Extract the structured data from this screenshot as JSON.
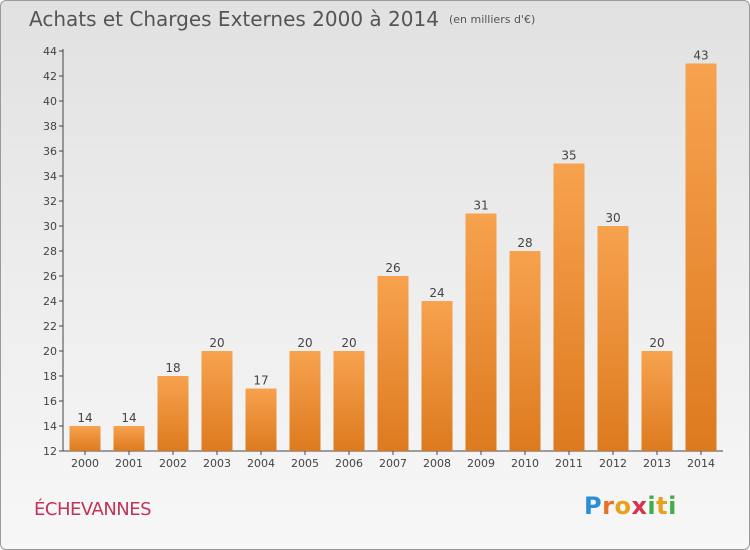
{
  "header": {
    "title": "Achats et Charges Externes 2000 à 2014",
    "unit": "(en milliers d'€)"
  },
  "commune": "ÉCHEVANNES",
  "brand": {
    "letters": [
      "P",
      "r",
      "o",
      "x",
      "i",
      "t",
      "i"
    ],
    "colors": [
      "#2a8fd6",
      "#e8702a",
      "#e8a11f",
      "#d8324c",
      "#3fae49",
      "#e8a11f",
      "#3fae49"
    ]
  },
  "colors": {
    "bar_light": "#f7a24e",
    "bar_dark": "#dd7a1f",
    "title": "#555555",
    "commune": "#c0345a"
  },
  "chart_data": {
    "type": "bar",
    "categories": [
      "2000",
      "2001",
      "2002",
      "2003",
      "2004",
      "2005",
      "2006",
      "2007",
      "2008",
      "2009",
      "2010",
      "2011",
      "2012",
      "2013",
      "2014"
    ],
    "values": [
      14,
      14,
      18,
      20,
      17,
      20,
      20,
      26,
      24,
      31,
      28,
      35,
      30,
      20,
      43
    ],
    "ylim": [
      12,
      44
    ],
    "yticks": [
      12,
      14,
      16,
      18,
      20,
      22,
      24,
      26,
      28,
      30,
      32,
      34,
      36,
      38,
      40,
      42,
      44
    ],
    "grid": false,
    "data_labels": true
  }
}
